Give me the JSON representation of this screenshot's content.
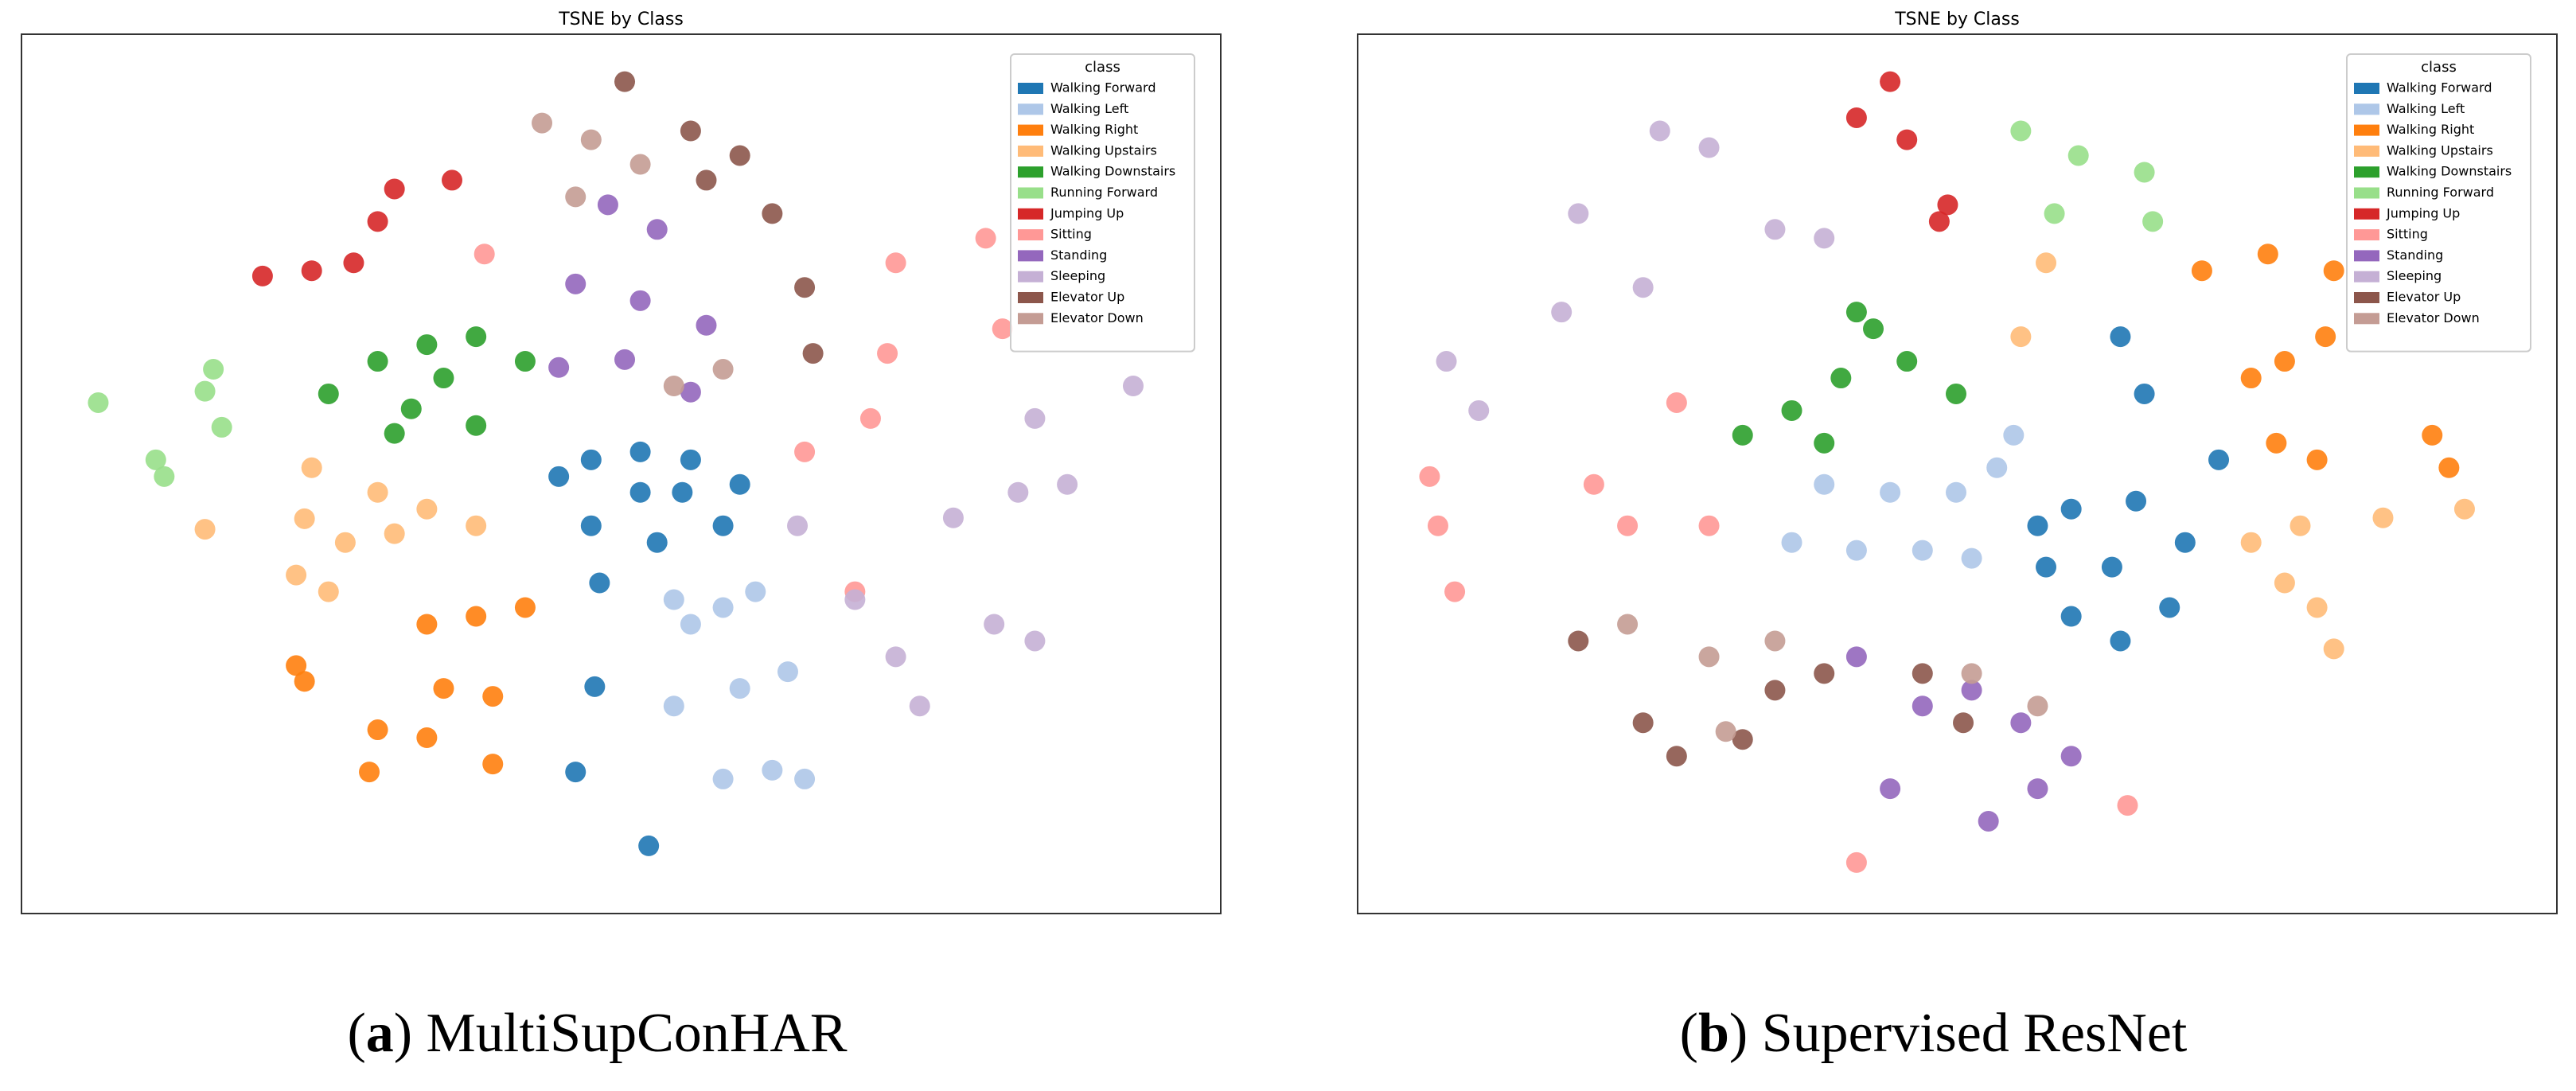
{
  "chart_data": [
    {
      "type": "scatter",
      "title": "TSNE by Class",
      "legend_title": "class",
      "legend": "upper right",
      "xlim": [
        0,
        100
      ],
      "ylim": [
        0,
        100
      ],
      "caption": [
        "(",
        "a",
        ") MultiSupConHAR"
      ],
      "series": [
        {
          "name": "Walking Forward",
          "color": "#1f77b4",
          "x": [
            44.8,
            47.5,
            51.6,
            55.8,
            59.9,
            58.5,
            53.0,
            47.5,
            51.6,
            48.2,
            47.8,
            46.2,
            52.3,
            55.1
          ],
          "y": [
            49.7,
            51.6,
            52.5,
            51.6,
            48.8,
            44.1,
            42.2,
            44.1,
            47.9,
            37.6,
            25.8,
            16.1,
            7.7,
            47.9
          ]
        },
        {
          "name": "Walking Left",
          "color": "#aec7e8",
          "x": [
            54.4,
            58.5,
            61.2,
            55.8,
            54.4,
            59.9,
            63.9,
            58.5,
            62.6,
            65.3
          ],
          "y": [
            35.7,
            34.8,
            36.6,
            32.9,
            23.6,
            25.6,
            27.5,
            15.3,
            16.3,
            15.3
          ]
        },
        {
          "name": "Walking Right",
          "color": "#ff7f0e",
          "x": [
            33.8,
            37.9,
            42.0,
            22.9,
            23.6,
            35.2,
            39.3,
            29.7,
            33.8,
            39.3,
            29.0
          ],
          "y": [
            32.9,
            33.8,
            34.8,
            28.2,
            26.4,
            25.6,
            24.7,
            20.9,
            20.0,
            17.0,
            16.1
          ]
        },
        {
          "name": "Walking Upstairs",
          "color": "#ffbb78",
          "x": [
            24.2,
            29.7,
            33.8,
            37.9,
            27.0,
            22.9,
            25.6,
            15.3,
            23.6,
            31.1
          ],
          "y": [
            50.7,
            47.9,
            46.0,
            44.1,
            42.2,
            38.5,
            36.6,
            43.7,
            44.9,
            43.2
          ]
        },
        {
          "name": "Walking Downstairs",
          "color": "#2ca02c",
          "x": [
            25.6,
            29.7,
            33.8,
            37.9,
            42.0,
            32.5,
            37.9,
            31.1,
            35.2
          ],
          "y": [
            59.1,
            62.8,
            64.7,
            65.6,
            62.8,
            57.4,
            55.5,
            54.6,
            60.9
          ]
        },
        {
          "name": "Running Forward",
          "color": "#98df8a",
          "x": [
            6.4,
            11.2,
            11.9,
            16.0,
            16.7,
            15.3
          ],
          "y": [
            58.1,
            51.6,
            49.7,
            61.9,
            55.3,
            59.4
          ]
        },
        {
          "name": "Jumping Up",
          "color": "#d62728",
          "x": [
            20.1,
            24.2,
            27.7,
            29.7,
            31.1,
            35.9
          ],
          "y": [
            72.5,
            73.1,
            74.0,
            78.7,
            82.4,
            83.4
          ]
        },
        {
          "name": "Sitting",
          "color": "#ff9896",
          "x": [
            38.6,
            65.3,
            70.8,
            72.2,
            72.9,
            80.4,
            81.8,
            69.5
          ],
          "y": [
            75.0,
            52.5,
            56.3,
            63.7,
            74.0,
            76.8,
            66.5,
            36.6
          ]
        },
        {
          "name": "Standing",
          "color": "#9467bd",
          "x": [
            46.2,
            51.6,
            57.1,
            50.3,
            55.8,
            44.8,
            53.0,
            48.9
          ],
          "y": [
            71.6,
            69.7,
            66.9,
            63.0,
            59.3,
            62.1,
            77.8,
            80.6
          ]
        },
        {
          "name": "Sleeping",
          "color": "#c5b0d5",
          "x": [
            69.5,
            72.9,
            74.9,
            77.7,
            83.1,
            87.2,
            81.1,
            84.5,
            84.5,
            92.7,
            64.7
          ],
          "y": [
            35.7,
            29.2,
            23.6,
            45.0,
            47.9,
            48.8,
            32.9,
            31.0,
            56.3,
            60.0,
            44.1
          ]
        },
        {
          "name": "Elevator Up",
          "color": "#8c564b",
          "x": [
            50.3,
            55.8,
            59.9,
            62.6,
            65.3,
            66.0,
            57.1
          ],
          "y": [
            94.6,
            89.0,
            86.2,
            79.6,
            71.2,
            63.7,
            83.4
          ]
        },
        {
          "name": "Elevator Down",
          "color": "#c49c94",
          "x": [
            43.4,
            47.5,
            51.6,
            46.2,
            58.5,
            54.4
          ],
          "y": [
            89.9,
            88.0,
            85.2,
            81.5,
            61.9,
            60.0
          ]
        }
      ]
    },
    {
      "type": "scatter",
      "title": "TSNE by Class",
      "legend_title": "class",
      "legend": "upper right",
      "xlim": [
        0,
        100
      ],
      "ylim": [
        0,
        100
      ],
      "caption": [
        "(",
        "b",
        ") Supervised ResNet"
      ],
      "series": [
        {
          "name": "Walking Forward",
          "color": "#1f77b4",
          "x": [
            56.7,
            59.5,
            64.9,
            69.0,
            67.7,
            63.6,
            59.5,
            57.4,
            62.9,
            63.6,
            65.6,
            71.8
          ],
          "y": [
            44.1,
            46.0,
            46.9,
            42.2,
            34.8,
            31.0,
            33.8,
            39.4,
            39.4,
            65.6,
            59.1,
            51.6
          ]
        },
        {
          "name": "Walking Left",
          "color": "#aec7e8",
          "x": [
            38.9,
            44.4,
            49.9,
            36.2,
            41.6,
            47.1,
            51.2,
            54.7,
            53.3
          ],
          "y": [
            48.8,
            47.9,
            47.9,
            42.2,
            41.3,
            41.3,
            40.4,
            54.4,
            50.7
          ]
        },
        {
          "name": "Walking Right",
          "color": "#ff7f0e",
          "x": [
            70.4,
            75.9,
            81.4,
            74.5,
            77.3,
            80.7,
            76.6,
            80.0,
            89.6,
            91.0
          ],
          "y": [
            73.1,
            75.0,
            73.1,
            60.9,
            62.8,
            65.6,
            53.5,
            51.6,
            54.4,
            50.7
          ]
        },
        {
          "name": "Walking Upstairs",
          "color": "#ffbb78",
          "x": [
            74.5,
            78.6,
            85.5,
            92.3,
            77.3,
            80.0,
            81.4,
            55.3,
            57.4
          ],
          "y": [
            42.2,
            44.1,
            45.0,
            46.0,
            37.6,
            34.8,
            30.1,
            65.6,
            74.0
          ]
        },
        {
          "name": "Walking Downstairs",
          "color": "#2ca02c",
          "x": [
            32.1,
            36.2,
            40.3,
            43.0,
            45.8,
            49.9,
            38.9,
            41.6
          ],
          "y": [
            54.4,
            57.2,
            60.9,
            66.5,
            62.8,
            59.1,
            53.5,
            68.4
          ]
        },
        {
          "name": "Running Forward",
          "color": "#98df8a",
          "x": [
            55.3,
            60.1,
            58.1,
            66.3,
            65.6
          ],
          "y": [
            89.0,
            86.2,
            79.6,
            78.7,
            84.3
          ]
        },
        {
          "name": "Jumping Up",
          "color": "#d62728",
          "x": [
            44.4,
            45.8,
            41.6,
            48.5,
            49.2
          ],
          "y": [
            94.6,
            88.0,
            90.5,
            78.7,
            80.6
          ]
        },
        {
          "name": "Sitting",
          "color": "#ff9896",
          "x": [
            6.0,
            6.7,
            8.1,
            19.7,
            22.5,
            29.3,
            26.6,
            41.6,
            64.2
          ],
          "y": [
            49.7,
            44.1,
            36.6,
            48.8,
            44.1,
            44.1,
            58.1,
            5.8,
            12.3
          ]
        },
        {
          "name": "Standing",
          "color": "#9467bd",
          "x": [
            41.6,
            47.1,
            51.2,
            55.3,
            59.5,
            44.4,
            52.6,
            56.7
          ],
          "y": [
            29.2,
            23.6,
            25.4,
            21.7,
            17.9,
            14.2,
            10.5,
            14.2
          ]
        },
        {
          "name": "Sleeping",
          "color": "#c5b0d5",
          "x": [
            7.4,
            10.1,
            18.4,
            23.8,
            29.3,
            34.8,
            38.9,
            17.0,
            25.2
          ],
          "y": [
            62.8,
            57.2,
            79.6,
            71.2,
            87.1,
            77.8,
            76.8,
            68.4,
            89.0
          ]
        },
        {
          "name": "Elevator Up",
          "color": "#8c564b",
          "x": [
            18.4,
            23.8,
            26.6,
            32.1,
            34.8,
            38.9,
            47.1,
            50.5
          ],
          "y": [
            31.0,
            21.7,
            17.9,
            19.8,
            25.4,
            27.3,
            27.3,
            21.7
          ]
        },
        {
          "name": "Elevator Down",
          "color": "#c49c94",
          "x": [
            22.5,
            29.3,
            34.8,
            30.7,
            51.2,
            56.7
          ],
          "y": [
            32.9,
            29.2,
            31.0,
            20.7,
            27.3,
            23.6
          ]
        }
      ]
    }
  ]
}
